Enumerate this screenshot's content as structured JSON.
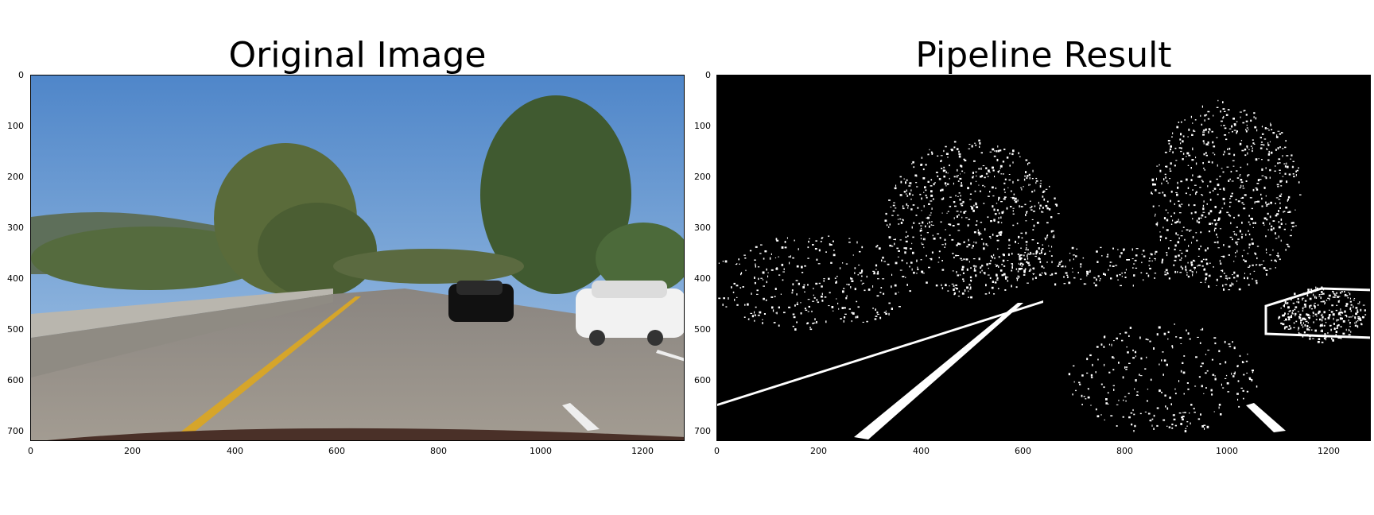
{
  "panels": [
    {
      "title": "Original Image"
    },
    {
      "title": "Pipeline Result"
    }
  ],
  "axes": {
    "x_ticks": [
      "0",
      "200",
      "400",
      "600",
      "800",
      "1000",
      "1200"
    ],
    "y_ticks": [
      "0",
      "100",
      "200",
      "300",
      "400",
      "500",
      "600",
      "700"
    ],
    "x_range": [
      0,
      1280
    ],
    "y_range": [
      0,
      720
    ]
  }
}
